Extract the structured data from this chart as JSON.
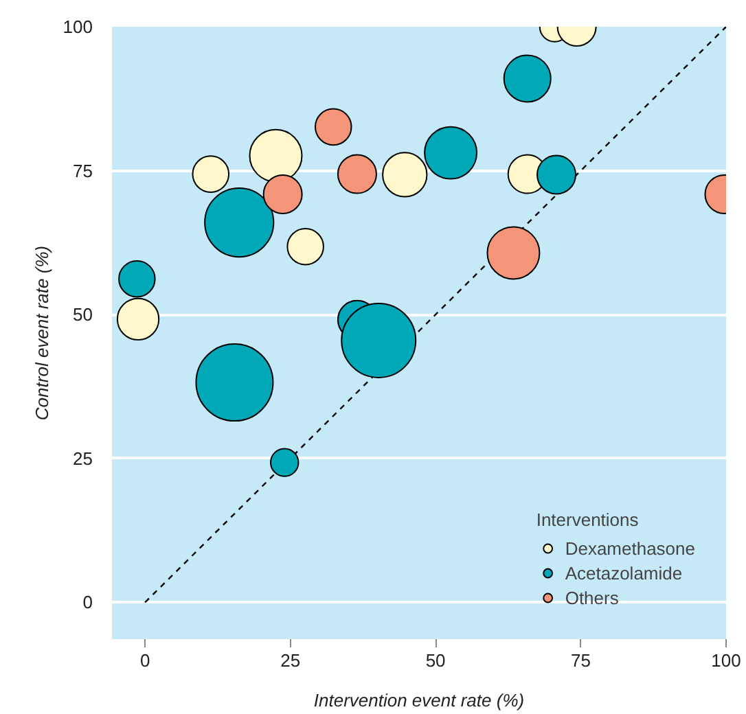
{
  "chart_data": {
    "type": "bubble",
    "xlabel": "Intervention event rate (%)",
    "ylabel": "Control event rate (%)",
    "legend_title": "Interventions",
    "xlim": [
      -5.7,
      100
    ],
    "ylim": [
      -6.4,
      100
    ],
    "xticks": [
      0,
      25,
      50,
      75,
      100
    ],
    "yticks": [
      0,
      25,
      50,
      75,
      100
    ],
    "grid": "y",
    "legend": "bottom right",
    "series": [
      {
        "type": "line",
        "x": [
          0,
          100
        ],
        "values": [
          0,
          100
        ],
        "color": "#000000",
        "line_style": "dashed"
      },
      {
        "name": "Dexamethasone",
        "color": "#fff8cc",
        "x": [
          70.5,
          74.3,
          11.3,
          22.5,
          27.6,
          44.7,
          65.8,
          -1.2
        ],
        "values": [
          100,
          100,
          74.4,
          77.6,
          61.8,
          74.3,
          74.4,
          49.2
        ],
        "sizes": [
          0.15,
          0.25,
          0.22,
          0.46,
          0.22,
          0.33,
          0.25,
          0.29
        ]
      },
      {
        "name": "Acetazolamide",
        "color": "#00a8b8",
        "x": [
          -1.4,
          16.2,
          52.6,
          65.8,
          70.8,
          36.5,
          40.2,
          15.4,
          24.0
        ],
        "values": [
          56.2,
          66.0,
          78.1,
          91.0,
          74.3,
          49.1,
          45.5,
          38.2,
          24.3
        ],
        "sizes": [
          0.22,
          0.8,
          0.46,
          0.37,
          0.25,
          0.25,
          0.93,
          1,
          0.13
        ]
      },
      {
        "name": "Others",
        "color": "#f4957a",
        "x": [
          32.4,
          23.7,
          36.5,
          63.4,
          99.7
        ],
        "values": [
          82.6,
          70.9,
          74.4,
          60.7,
          70.9
        ],
        "sizes": [
          0.22,
          0.25,
          0.25,
          0.46,
          0.25
        ]
      }
    ]
  }
}
